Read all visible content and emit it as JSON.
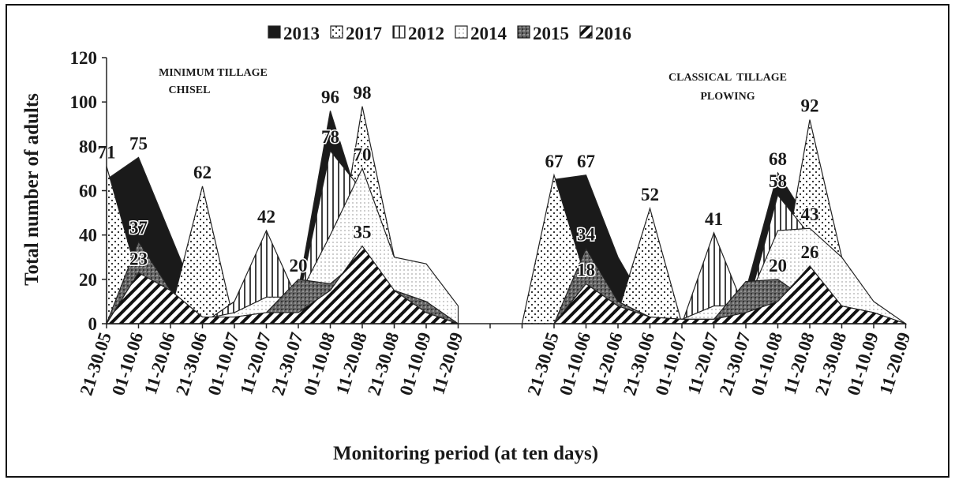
{
  "chart_data": {
    "type": "area",
    "x_label": "Monitoring period (at ten days)",
    "y_label": "Total number of adults",
    "annotations": [
      "MINIMUM TILLAGE",
      "CHISEL",
      "CLASSICAL  TILLAGE",
      "PLOWING"
    ],
    "categories": [
      "21-30.05",
      "01-10.06",
      "11-20.06",
      "21-30.06",
      "01-10.07",
      "11-20.07",
      "21-30.07",
      "01-10.08",
      "11-20.08",
      "21-30.08",
      "01-10.09",
      "11-20.09",
      null,
      null,
      "21-30.05",
      "01-10.06",
      "11-20.06",
      "21-30.06",
      "01-10.07",
      "11-20.07",
      "21-30.07",
      "01-10.08",
      "11-20.08",
      "21-30.08",
      "01-10.09",
      "11-20.09"
    ],
    "ylim": [
      0,
      120
    ],
    "yticks": [
      0,
      20,
      40,
      60,
      80,
      100,
      120
    ],
    "legend": "top",
    "series": [
      {
        "name": "2013",
        "color": "#1a1a1a",
        "pattern": "solid",
        "values": [
          65,
          75,
          40,
          5,
          0,
          0,
          15,
          96,
          50,
          0,
          0,
          0,
          null,
          null,
          65,
          67,
          30,
          5,
          0,
          0,
          15,
          68,
          45,
          0,
          0,
          0
        ],
        "value_labels": [
          null,
          "75",
          null,
          null,
          null,
          null,
          null,
          "96",
          null,
          null,
          null,
          null,
          null,
          null,
          null,
          "67",
          null,
          null,
          null,
          null,
          null,
          "68",
          null,
          null,
          null,
          null
        ]
      },
      {
        "name": "2017",
        "color": "#bdbdbd",
        "pattern": "dots",
        "values": [
          71,
          20,
          5,
          62,
          0,
          0,
          0,
          10,
          98,
          30,
          0,
          0,
          null,
          0,
          67,
          20,
          5,
          52,
          0,
          0,
          0,
          10,
          92,
          30,
          0,
          0
        ],
        "value_labels": [
          "71",
          null,
          null,
          "62",
          null,
          null,
          null,
          null,
          "98",
          null,
          null,
          null,
          null,
          null,
          "67",
          null,
          null,
          "52",
          null,
          null,
          null,
          null,
          "92",
          null,
          null,
          null
        ]
      },
      {
        "name": "2012",
        "color": "#ffffff",
        "pattern": "vertical",
        "values": [
          0,
          0,
          0,
          0,
          10,
          42,
          10,
          78,
          60,
          30,
          0,
          0,
          null,
          null,
          0,
          0,
          0,
          0,
          0,
          41,
          5,
          58,
          40,
          20,
          0,
          0
        ],
        "value_labels": [
          null,
          null,
          null,
          null,
          null,
          "42",
          null,
          "78",
          null,
          null,
          null,
          null,
          null,
          null,
          null,
          null,
          null,
          null,
          null,
          "41",
          null,
          "58",
          null,
          null,
          null,
          null
        ]
      },
      {
        "name": "2014",
        "color": "#ffffff",
        "pattern": "fine",
        "values": [
          0,
          0,
          0,
          2,
          5,
          12,
          12,
          40,
          70,
          30,
          27,
          8,
          null,
          null,
          0,
          0,
          0,
          2,
          2,
          8,
          8,
          42,
          43,
          30,
          10,
          0
        ],
        "value_labels": [
          null,
          null,
          null,
          null,
          null,
          null,
          null,
          null,
          "70",
          null,
          null,
          null,
          null,
          null,
          null,
          null,
          null,
          null,
          null,
          null,
          null,
          null,
          "43",
          null,
          null,
          null
        ]
      },
      {
        "name": "2015",
        "color": "#6e6e6e",
        "pattern": "darkdots",
        "values": [
          0,
          37,
          15,
          3,
          3,
          5,
          20,
          18,
          30,
          15,
          10,
          0,
          null,
          null,
          0,
          34,
          10,
          3,
          2,
          2,
          19,
          20,
          10,
          8,
          5,
          0
        ],
        "value_labels": [
          null,
          "37",
          null,
          null,
          null,
          null,
          "20",
          null,
          null,
          null,
          null,
          null,
          null,
          null,
          null,
          "34",
          null,
          null,
          null,
          null,
          null,
          "20",
          null,
          null,
          null,
          null
        ]
      },
      {
        "name": "2016",
        "color": "#ffffff",
        "pattern": "diagonal",
        "values": [
          0,
          23,
          15,
          3,
          3,
          5,
          5,
          15,
          35,
          15,
          5,
          0,
          null,
          null,
          0,
          18,
          8,
          3,
          2,
          2,
          5,
          10,
          26,
          8,
          5,
          0
        ],
        "value_labels": [
          null,
          "23",
          null,
          null,
          null,
          null,
          null,
          null,
          "35",
          null,
          null,
          null,
          null,
          null,
          null,
          "18",
          null,
          null,
          null,
          null,
          null,
          null,
          "26",
          null,
          null,
          null
        ]
      }
    ]
  }
}
